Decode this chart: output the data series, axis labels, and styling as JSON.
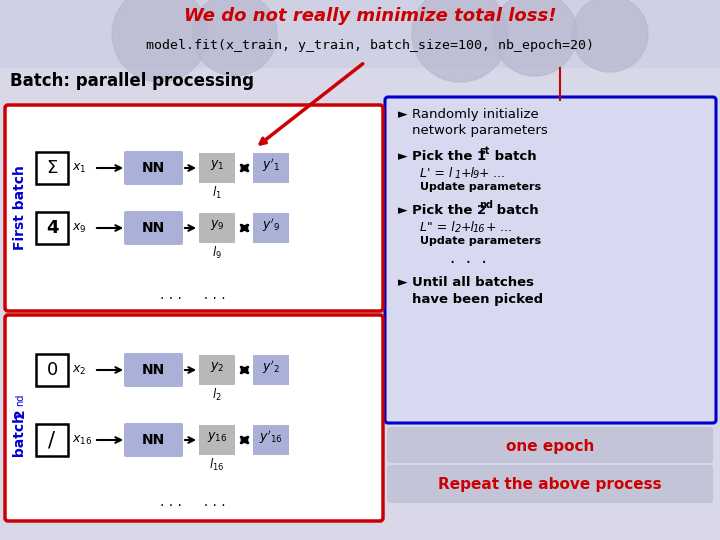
{
  "title_red": "We do not really minimize total loss!",
  "title_black": "model.fit(x_train, y_train, batch_size=100, nb_epoch=20)",
  "batch_label": "Batch:",
  "parallel_label": "parallel processing",
  "slide_bg": "#d8d8e8",
  "header_bg": "#d0d0e4",
  "red": "#cc0000",
  "blue_dark": "#0000cc",
  "nn_box_color": "#aab0d8",
  "y_box_color": "#b8b8b8",
  "right_box_bg": "#d8d8f0",
  "epoch_bg": "#c4c4d8",
  "repeat_bg": "#c4c4d8",
  "circle_color": "#b8b8d0",
  "right_text_items": [
    {
      "bullet": true,
      "text": "Randomly initialize",
      "text2": "network parameters",
      "bold": false,
      "sub": null
    },
    {
      "bullet": true,
      "text": "Pick the 1",
      "sup": "st",
      "text_end": " batch",
      "bold": true,
      "line2": "L’ = l₁+l₉+ ...",
      "line3": "Update parameters"
    },
    {
      "bullet": true,
      "text": "Pick the 2",
      "sup": "nd",
      "text_end": " batch",
      "bold": true,
      "line2": "L″ = l₂+l₁₆+ ...",
      "line3": "Update parameters"
    },
    {
      "bullet": false,
      "text": "·  ·  ·",
      "bold": false
    },
    {
      "bullet": true,
      "text": "Until all batches",
      "text2": "have been picked",
      "bold": true
    }
  ]
}
